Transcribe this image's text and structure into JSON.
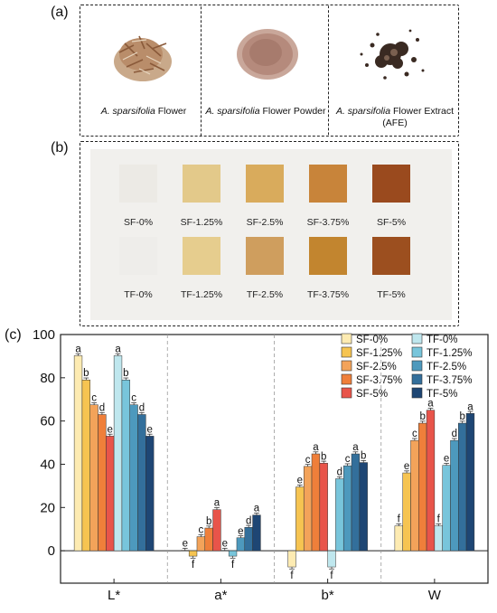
{
  "panel_a": {
    "label": "(a)",
    "items": [
      {
        "italic": "A. sparsifolia",
        "rest": " Flower",
        "line2": ""
      },
      {
        "italic": "A. sparsifolia",
        "rest": " Flower Powder",
        "line2": ""
      },
      {
        "italic": "A. sparsifolia",
        "rest": " Flower Extract",
        "line2": "(AFE)"
      }
    ]
  },
  "panel_b": {
    "label": "(b)",
    "row1": [
      {
        "label": "SF-0%",
        "color": "#eceae5"
      },
      {
        "label": "SF-1.25%",
        "color": "#e3c98a"
      },
      {
        "label": "SF-2.5%",
        "color": "#d9ab5c"
      },
      {
        "label": "SF-3.75%",
        "color": "#c8843a"
      },
      {
        "label": "SF-5%",
        "color": "#9a4a1e"
      }
    ],
    "row2": [
      {
        "label": "TF-0%",
        "color": "#eeedea"
      },
      {
        "label": "TF-1.25%",
        "color": "#e6cd8e"
      },
      {
        "label": "TF-2.5%",
        "color": "#cf9e5e"
      },
      {
        "label": "TF-3.75%",
        "color": "#c2852f"
      },
      {
        "label": "TF-5%",
        "color": "#9c4f1f"
      }
    ]
  },
  "panel_c_label": "(c)",
  "chart_data": {
    "type": "bar",
    "categories": [
      "L*",
      "a*",
      "b*",
      "W"
    ],
    "ylim": [
      -15,
      100
    ],
    "yticks": [
      "0",
      "20",
      "40",
      "60",
      "80",
      "100"
    ],
    "grid": false,
    "legend_position": "top-right",
    "series": [
      {
        "name": "SF-0%",
        "color": "#fdebb2",
        "values": [
          90.2,
          0.2,
          -7.5,
          11.5
        ],
        "letters": [
          "a",
          "e",
          "f",
          "f"
        ]
      },
      {
        "name": "SF-1.25%",
        "color": "#f6c451",
        "values": [
          79.0,
          -2.5,
          29.5,
          36.0
        ],
        "letters": [
          "b",
          "f",
          "e",
          "e"
        ]
      },
      {
        "name": "SF-2.5%",
        "color": "#f3a35a",
        "values": [
          67.5,
          6.5,
          39.0,
          51.0
        ],
        "letters": [
          "c",
          "c",
          "c",
          "c"
        ]
      },
      {
        "name": "SF-3.75%",
        "color": "#ef7f3a",
        "values": [
          63.0,
          10.5,
          44.8,
          59.0
        ],
        "letters": [
          "d",
          "b",
          "a",
          "b"
        ]
      },
      {
        "name": "SF-5%",
        "color": "#e8544a",
        "values": [
          53.0,
          19.0,
          40.5,
          65.0
        ],
        "letters": [
          "e",
          "a",
          "b",
          "a"
        ]
      },
      {
        "name": "TF-0%",
        "color": "#bfe7ee",
        "values": [
          90.2,
          0.2,
          -7.5,
          11.5
        ],
        "letters": [
          "a",
          "e",
          "f",
          "f"
        ]
      },
      {
        "name": "TF-1.25%",
        "color": "#78c5db",
        "values": [
          79.0,
          -2.5,
          33.3,
          39.5
        ],
        "letters": [
          "b",
          "f",
          "d",
          "e"
        ]
      },
      {
        "name": "TF-2.5%",
        "color": "#4d99bd",
        "values": [
          67.5,
          6.0,
          39.3,
          51.0
        ],
        "letters": [
          "c",
          "e",
          "c",
          "d"
        ]
      },
      {
        "name": "TF-3.75%",
        "color": "#336f9b",
        "values": [
          63.0,
          10.8,
          44.8,
          59.0
        ],
        "letters": [
          "d",
          "d",
          "a",
          "b"
        ]
      },
      {
        "name": "TF-5%",
        "color": "#1e4674",
        "values": [
          53.0,
          16.5,
          40.8,
          63.5
        ],
        "letters": [
          "e",
          "a",
          "b",
          "a"
        ]
      }
    ]
  }
}
